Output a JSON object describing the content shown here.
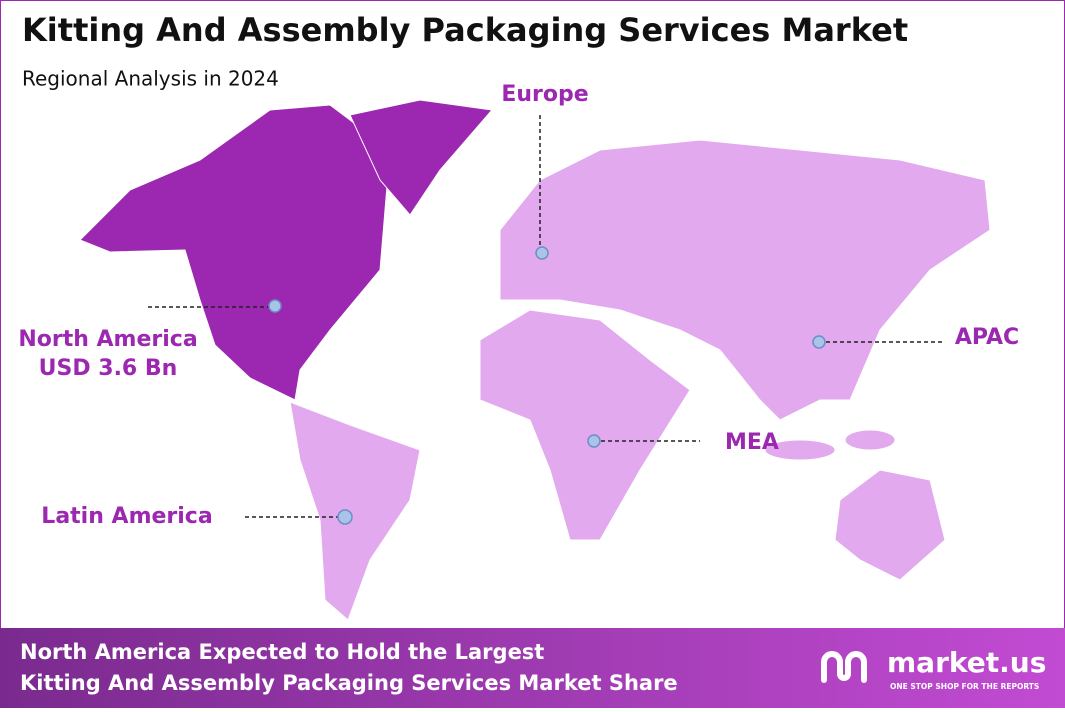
{
  "header": {
    "title": "Kitting And Assembly Packaging Services Market",
    "subtitle": "Regional Analysis in 2024"
  },
  "regions": [
    {
      "label": "North America",
      "value": "USD 3.6 Bn"
    },
    {
      "label": "Europe"
    },
    {
      "label": "APAC"
    },
    {
      "label": "MEA"
    },
    {
      "label": "Latin America"
    }
  ],
  "footer": {
    "lines": [
      "North America Expected to Hold the Largest",
      "Kitting And Assembly Packaging Services Market Share"
    ],
    "brand": "market.us",
    "tagline": "ONE STOP SHOP FOR THE REPORTS"
  }
}
